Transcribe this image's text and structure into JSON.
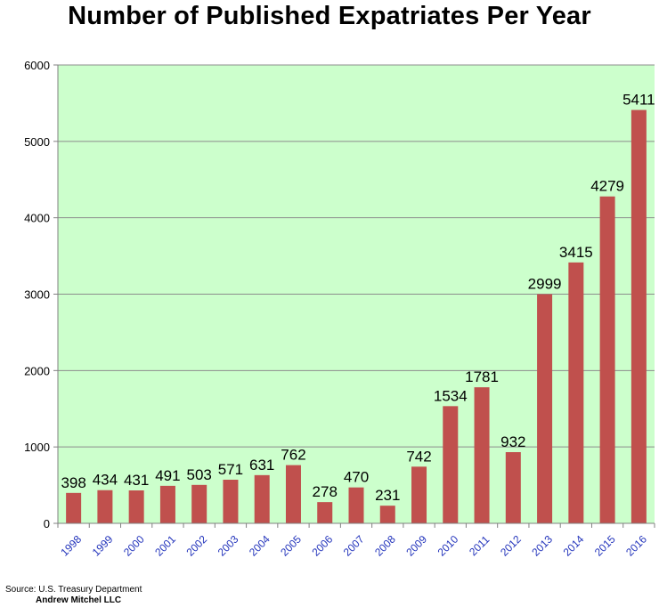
{
  "chart_data": {
    "type": "bar",
    "title": "Number of Published Expatriates Per Year",
    "xlabel": "",
    "ylabel": "",
    "categories": [
      "1998",
      "1999",
      "2000",
      "2001",
      "2002",
      "2003",
      "2004",
      "2005",
      "2006",
      "2007",
      "2008",
      "2009",
      "2010",
      "2011",
      "2012",
      "2013",
      "2014",
      "2015",
      "2016"
    ],
    "values": [
      398,
      434,
      431,
      491,
      503,
      571,
      631,
      762,
      278,
      470,
      231,
      742,
      1534,
      1781,
      932,
      2999,
      3415,
      4279,
      5411
    ],
    "ylim": [
      0,
      6000
    ],
    "yticks": [
      "0",
      "1000",
      "2000",
      "3000",
      "4000",
      "5000",
      "6000"
    ],
    "grid": true,
    "legend": "none",
    "colors": {
      "bar": "#c0504d",
      "plot_bg": "#ccffcc",
      "grid": "#8c8c8c",
      "xtick": "#2233bb"
    }
  },
  "footer": {
    "source": "Source: U.S. Treasury Department",
    "credit": "Andrew Mitchel LLC"
  }
}
